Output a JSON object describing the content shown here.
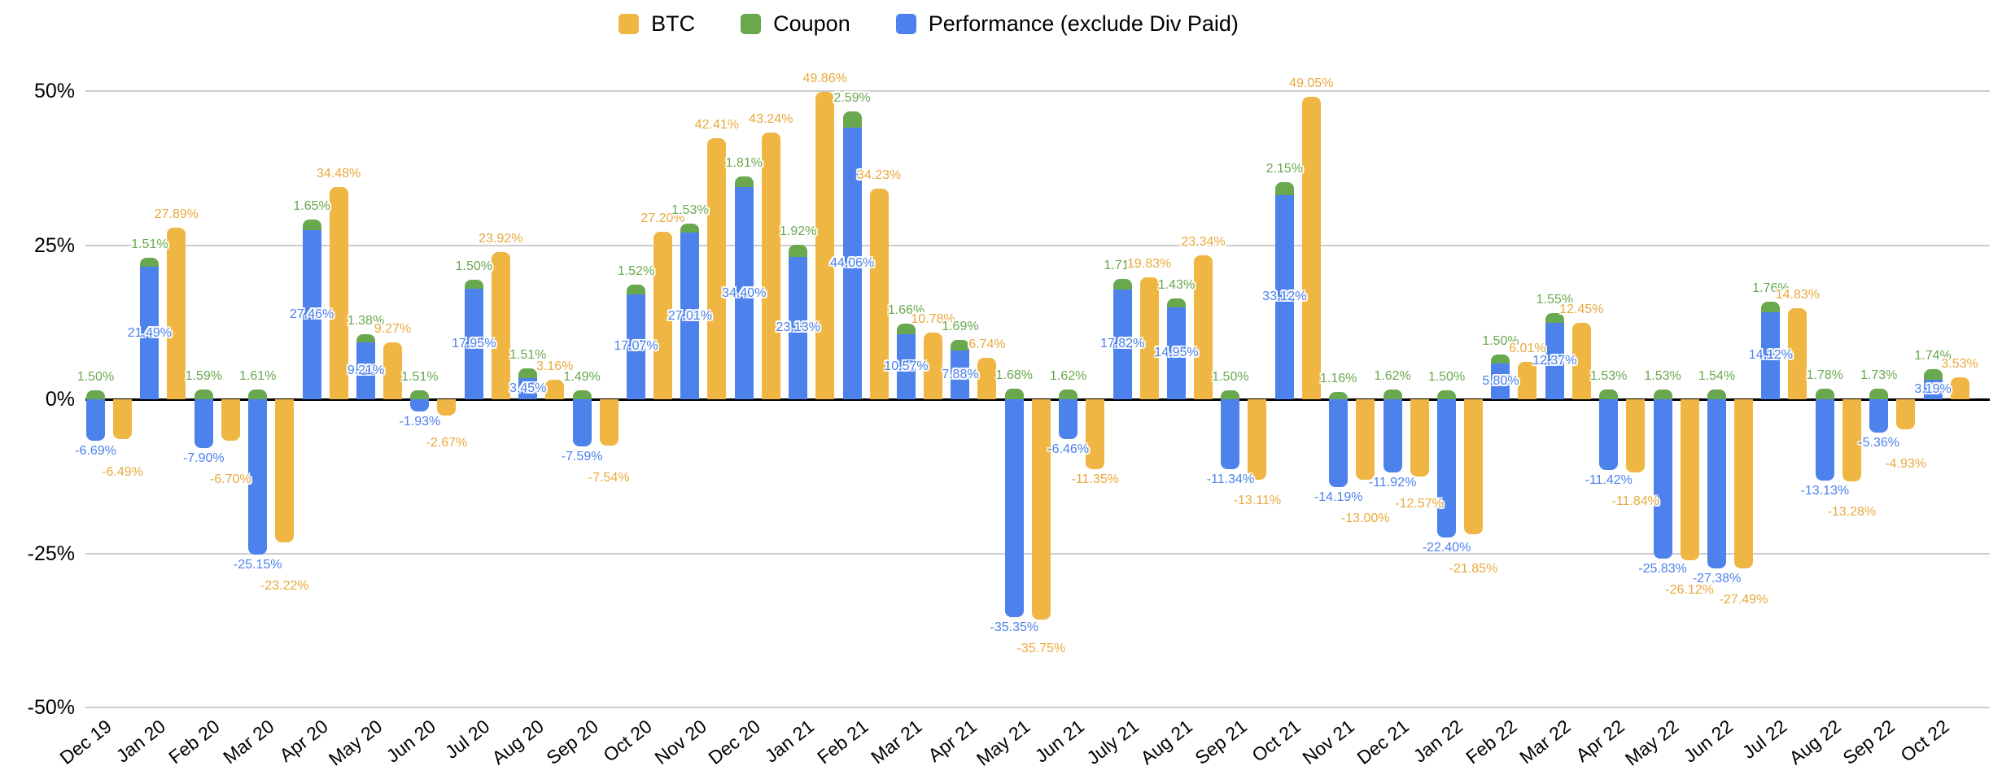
{
  "legend": {
    "items": [
      {
        "label": "BTC",
        "color": "#EFB643"
      },
      {
        "label": "Coupon",
        "color": "#6AA84F"
      },
      {
        "label": "Performance (exclude Div Paid)",
        "color": "#4D81EC"
      }
    ]
  },
  "axes": {
    "y_ticks": [
      "50%",
      "25%",
      "0%",
      "-25%",
      "-50%"
    ],
    "y_max": 50,
    "y_min": -50
  },
  "chart_data": {
    "type": "bar",
    "title": "",
    "xlabel": "",
    "ylabel": "",
    "ylim": [
      -50,
      50
    ],
    "grid": true,
    "legend_position": "top",
    "label_format": "0.00%",
    "stacking_note": "Coupon is stacked with Performance in one column; BTC is a separate column per month",
    "categories": [
      "Dec 19",
      "Jan 20",
      "Feb 20",
      "Mar 20",
      "Apr 20",
      "May 20",
      "Jun 20",
      "Jul 20",
      "Aug 20",
      "Sep 20",
      "Oct 20",
      "Nov 20",
      "Dec 20",
      "Jan 21",
      "Feb 21",
      "Mar 21",
      "Apr 21",
      "May 21",
      "Jun 21",
      "July 21",
      "Aug 21",
      "Sep 21",
      "Oct 21",
      "Nov 21",
      "Dec 21",
      "Jan 22",
      "Feb 22",
      "Mar 22",
      "Apr 22",
      "May 22",
      "Jun 22",
      "Jul 22",
      "Aug 22",
      "Sep 22",
      "Oct 22"
    ],
    "series": [
      {
        "name": "BTC",
        "color": "#EFB643",
        "values": [
          -6.49,
          27.89,
          -6.7,
          -23.22,
          34.48,
          9.27,
          -2.67,
          23.92,
          3.16,
          -7.54,
          27.2,
          42.41,
          43.24,
          49.86,
          34.23,
          10.78,
          6.74,
          -35.75,
          -11.35,
          19.83,
          23.34,
          -13.11,
          49.05,
          -13.0,
          -12.57,
          -21.85,
          6.01,
          12.45,
          -11.84,
          -26.12,
          -27.49,
          14.83,
          -13.28,
          -4.93,
          3.53
        ]
      },
      {
        "name": "Coupon",
        "color": "#6AA84F",
        "values": [
          1.5,
          1.51,
          1.59,
          1.61,
          1.65,
          1.38,
          1.51,
          1.5,
          1.51,
          1.49,
          1.52,
          1.53,
          1.81,
          1.92,
          2.59,
          1.66,
          1.69,
          1.68,
          1.62,
          1.71,
          1.43,
          1.5,
          2.15,
          1.16,
          1.62,
          1.5,
          1.5,
          1.55,
          1.53,
          1.53,
          1.54,
          1.76,
          1.78,
          1.73,
          1.74
        ]
      },
      {
        "name": "Performance (exclude Div Paid)",
        "color": "#4D81EC",
        "values": [
          -6.69,
          21.49,
          -7.9,
          -25.15,
          27.46,
          9.21,
          -1.93,
          17.95,
          3.45,
          -7.59,
          17.07,
          27.01,
          34.4,
          23.13,
          44.06,
          10.57,
          7.88,
          -35.35,
          -6.46,
          17.82,
          14.95,
          -11.34,
          33.12,
          -14.19,
          -11.92,
          -22.4,
          5.8,
          12.37,
          -11.42,
          -25.83,
          -27.38,
          14.12,
          -13.13,
          -5.36,
          3.19
        ]
      }
    ]
  }
}
